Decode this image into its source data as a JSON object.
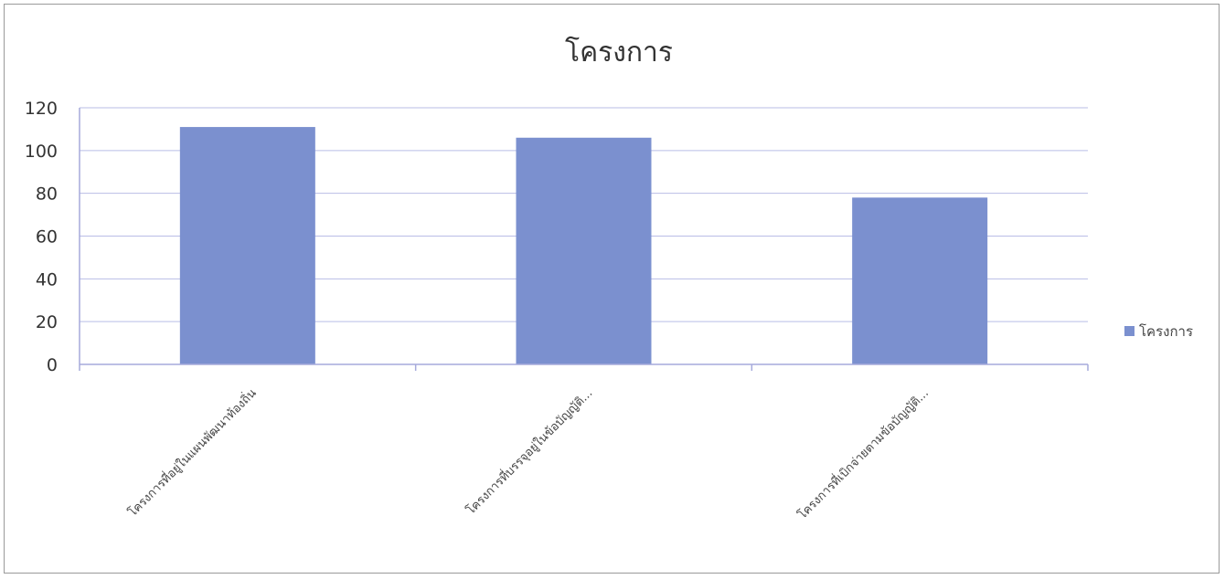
{
  "chart_data": {
    "type": "bar",
    "title": "โครงการ",
    "categories": [
      "โครงการที่อยู่ในแผนพัฒนาท้องถิ่น",
      "โครงการที่บรรจุอยู่ในข้อบัญญัติ...",
      "โครงการที่เบิกจ่ายตามข้อบัญญัติ..."
    ],
    "series": [
      {
        "name": "โครงการ",
        "values": [
          111,
          106,
          78
        ],
        "color": "#7b90cf"
      }
    ],
    "ylim": [
      0,
      120
    ],
    "yticks": [
      0,
      20,
      40,
      60,
      80,
      100,
      120
    ],
    "grid": true,
    "legend": "right",
    "xlabel": "",
    "ylabel": ""
  }
}
